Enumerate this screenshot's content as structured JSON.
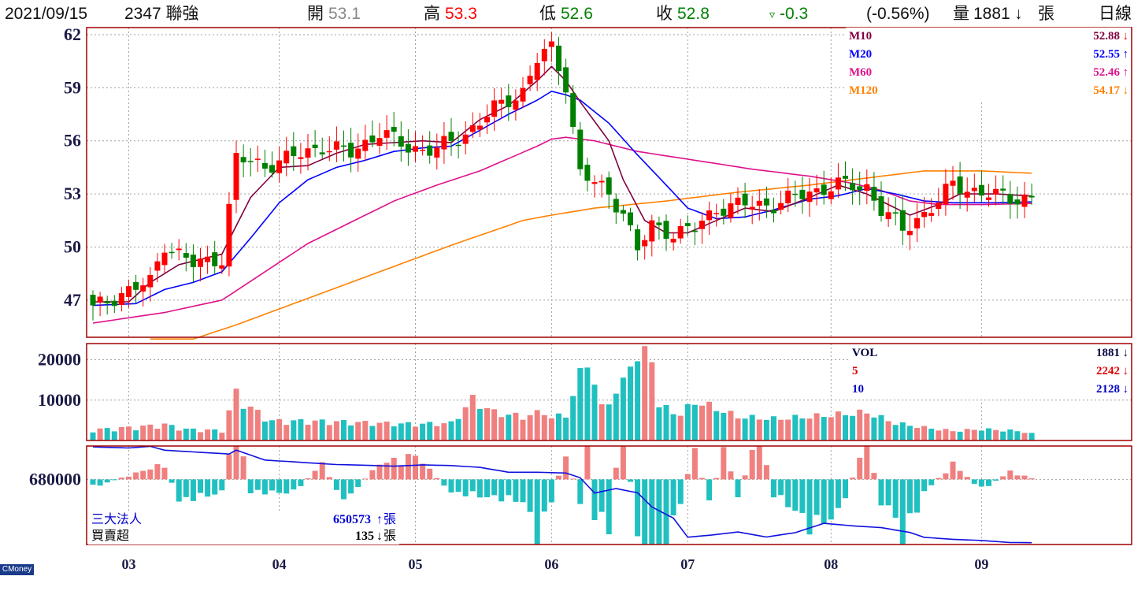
{
  "header": {
    "date": "2021/09/15",
    "stock": "2347 聯強",
    "open_label": "開",
    "open": "53.1",
    "high_label": "高",
    "high": "53.3",
    "low_label": "低",
    "low": "52.6",
    "close_label": "收",
    "close": "52.8",
    "change_symbol": "▿",
    "change": "-0.3",
    "change_pct": "(-0.56%)",
    "volume_label": "量",
    "volume": "1881",
    "volume_arrow": "↓",
    "volume_unit": "張",
    "period": "日線"
  },
  "colors": {
    "up": "#ff0000",
    "down": "#008000",
    "ma10": "#800040",
    "ma20": "#0000ff",
    "ma60": "#e0118b",
    "ma120": "#ff8000",
    "vol_up": "#f08080",
    "vol_down": "#20c0c0",
    "frame": "#a00000",
    "grid": "#a0a0a0"
  },
  "ma_legend": [
    {
      "name": "M10",
      "value": "52.88",
      "arrow": "↓",
      "color": "#800040"
    },
    {
      "name": "M20",
      "value": "52.55",
      "arrow": "↑",
      "color": "#0000ff"
    },
    {
      "name": "M60",
      "value": "52.46",
      "arrow": "↑",
      "color": "#e0118b"
    },
    {
      "name": "M120",
      "value": "54.17",
      "arrow": "↓",
      "color": "#ff8000"
    }
  ],
  "vol_legend": [
    {
      "name": "VOL",
      "value": "1881",
      "arrow": "↓",
      "color": "#000040"
    },
    {
      "name": "5",
      "value": "2242",
      "arrow": "↓",
      "color": "#e00000"
    },
    {
      "name": "10",
      "value": "2128",
      "arrow": "↓",
      "color": "#0000c0"
    }
  ],
  "inst_legend": [
    {
      "name": "三大法人",
      "value": "650573",
      "arrow": "↑",
      "unit": "張",
      "color": "#0000d0"
    },
    {
      "name": "買賣超",
      "value": "135",
      "arrow": "↓",
      "unit": "張",
      "color": "#000000"
    }
  ],
  "brand": "CMoney",
  "chart_data": {
    "type": "candlestick",
    "x_labels": [
      "03",
      "04",
      "05",
      "06",
      "07",
      "08",
      "09"
    ],
    "x_label_index": [
      5,
      26,
      45,
      64,
      83,
      103,
      124
    ],
    "price_ticks": [
      47,
      50,
      53,
      56,
      59,
      62
    ],
    "price_range": [
      44.9,
      62.4
    ],
    "volume_ticks": [
      10000,
      20000
    ],
    "volume_range": [
      0,
      24000
    ],
    "inst_ticks": [
      680000
    ],
    "inst_range": [
      641000,
      700000
    ],
    "close_anchors": [
      [
        0,
        46.5
      ],
      [
        4,
        47.4
      ],
      [
        8,
        48.0
      ],
      [
        10,
        50.2
      ],
      [
        14,
        49.0
      ],
      [
        18,
        49.4
      ],
      [
        20,
        55.0
      ],
      [
        24,
        54.6
      ],
      [
        28,
        55.1
      ],
      [
        32,
        55.7
      ],
      [
        36,
        55.3
      ],
      [
        40,
        56.5
      ],
      [
        44,
        55.6
      ],
      [
        48,
        55.5
      ],
      [
        52,
        56.4
      ],
      [
        56,
        57.8
      ],
      [
        60,
        58.8
      ],
      [
        62,
        60.6
      ],
      [
        64,
        61.2
      ],
      [
        66,
        59.2
      ],
      [
        68,
        54.2
      ],
      [
        72,
        53.0
      ],
      [
        74,
        52.0
      ],
      [
        76,
        49.8
      ],
      [
        78,
        51.2
      ],
      [
        81,
        50.8
      ],
      [
        84,
        51.0
      ],
      [
        87,
        52.2
      ],
      [
        91,
        52.4
      ],
      [
        95,
        52.4
      ],
      [
        100,
        53.1
      ],
      [
        104,
        53.5
      ],
      [
        108,
        53.4
      ],
      [
        110,
        52.1
      ],
      [
        113,
        51.0
      ],
      [
        118,
        52.5
      ],
      [
        120,
        53.6
      ],
      [
        124,
        53.0
      ],
      [
        128,
        52.8
      ],
      [
        131,
        52.8
      ]
    ],
    "vol_anchors": [
      [
        0,
        2500
      ],
      [
        6,
        3100
      ],
      [
        10,
        3700
      ],
      [
        13,
        2600
      ],
      [
        18,
        2300
      ],
      [
        20,
        11000
      ],
      [
        22,
        7500
      ],
      [
        25,
        4500
      ],
      [
        30,
        4500
      ],
      [
        35,
        4300
      ],
      [
        40,
        4000
      ],
      [
        45,
        3800
      ],
      [
        50,
        4000
      ],
      [
        53,
        9500
      ],
      [
        56,
        6500
      ],
      [
        60,
        5500
      ],
      [
        63,
        6700
      ],
      [
        64,
        5200
      ],
      [
        66,
        6000
      ],
      [
        68,
        15000
      ],
      [
        69,
        19000
      ],
      [
        71,
        7500
      ],
      [
        74,
        13000
      ],
      [
        75,
        19000
      ],
      [
        76,
        19000
      ],
      [
        78,
        20000
      ],
      [
        79,
        8000
      ],
      [
        82,
        6000
      ],
      [
        84,
        9000
      ],
      [
        86,
        8000
      ],
      [
        90,
        5500
      ],
      [
        95,
        5000
      ],
      [
        100,
        5500
      ],
      [
        104,
        6000
      ],
      [
        108,
        6500
      ],
      [
        112,
        4000
      ],
      [
        116,
        3000
      ],
      [
        120,
        2200
      ],
      [
        124,
        2600
      ],
      [
        128,
        2300
      ],
      [
        131,
        1881
      ]
    ],
    "inst_anchors": [
      [
        0,
        699500
      ],
      [
        5,
        698800
      ],
      [
        8,
        699800
      ],
      [
        10,
        697500
      ],
      [
        15,
        696200
      ],
      [
        19,
        695200
      ],
      [
        20,
        697500
      ],
      [
        24,
        691600
      ],
      [
        28,
        690500
      ],
      [
        31,
        689700
      ],
      [
        34,
        688900
      ],
      [
        38,
        688500
      ],
      [
        42,
        687900
      ],
      [
        46,
        688700
      ],
      [
        50,
        688300
      ],
      [
        54,
        687200
      ],
      [
        58,
        684300
      ],
      [
        62,
        684300
      ],
      [
        66,
        683800
      ],
      [
        68,
        681000
      ],
      [
        70,
        671800
      ],
      [
        73,
        674500
      ],
      [
        76,
        672000
      ],
      [
        78,
        663500
      ],
      [
        81,
        656800
      ],
      [
        83,
        645400
      ],
      [
        86,
        646500
      ],
      [
        90,
        648500
      ],
      [
        94,
        645500
      ],
      [
        98,
        648100
      ],
      [
        102,
        653700
      ],
      [
        106,
        652200
      ],
      [
        110,
        651100
      ],
      [
        114,
        648200
      ],
      [
        116,
        645300
      ],
      [
        120,
        644100
      ],
      [
        124,
        643400
      ],
      [
        128,
        642200
      ],
      [
        131,
        642100
      ]
    ],
    "net_anchors": [
      [
        0,
        -900
      ],
      [
        10,
        1800
      ],
      [
        12,
        -2500
      ],
      [
        18,
        -1500
      ],
      [
        20,
        6500
      ],
      [
        22,
        -1500
      ],
      [
        28,
        -1500
      ],
      [
        32,
        1800
      ],
      [
        35,
        -2500
      ],
      [
        40,
        1800
      ],
      [
        45,
        2800
      ],
      [
        50,
        -1500
      ],
      [
        60,
        -2500
      ],
      [
        62,
        -6500
      ],
      [
        64,
        -2500
      ],
      [
        66,
        3300
      ],
      [
        68,
        -3300
      ],
      [
        69,
        4500
      ],
      [
        70,
        -4300
      ],
      [
        72,
        -5500
      ],
      [
        74,
        8500
      ],
      [
        76,
        -9000
      ],
      [
        78,
        -16000
      ],
      [
        79,
        -13000
      ],
      [
        82,
        -2500
      ],
      [
        84,
        3800
      ],
      [
        86,
        -3500
      ],
      [
        88,
        3800
      ],
      [
        90,
        -1800
      ],
      [
        93,
        5500
      ],
      [
        95,
        -1800
      ],
      [
        98,
        -3500
      ],
      [
        100,
        -5500
      ],
      [
        104,
        -4000
      ],
      [
        108,
        4500
      ],
      [
        110,
        -2600
      ],
      [
        112,
        -4300
      ],
      [
        113,
        -7000
      ],
      [
        116,
        -1500
      ],
      [
        120,
        1800
      ],
      [
        124,
        -1200
      ],
      [
        128,
        900
      ],
      [
        131,
        135
      ]
    ],
    "ma10_anchors": [
      [
        0,
        46.9
      ],
      [
        5,
        46.9
      ],
      [
        8,
        48.0
      ],
      [
        12,
        49.0
      ],
      [
        18,
        49.6
      ],
      [
        22,
        52.8
      ],
      [
        26,
        54.5
      ],
      [
        30,
        54.6
      ],
      [
        34,
        55.3
      ],
      [
        38,
        55.8
      ],
      [
        42,
        55.9
      ],
      [
        46,
        56.0
      ],
      [
        50,
        55.9
      ],
      [
        54,
        57.2
      ],
      [
        58,
        58.0
      ],
      [
        62,
        59.4
      ],
      [
        64,
        60.2
      ],
      [
        66,
        59.4
      ],
      [
        68,
        58.2
      ],
      [
        72,
        56.0
      ],
      [
        74,
        53.8
      ],
      [
        77,
        51.5
      ],
      [
        80,
        50.8
      ],
      [
        83,
        50.8
      ],
      [
        87,
        51.5
      ],
      [
        91,
        52.2
      ],
      [
        95,
        52.0
      ],
      [
        100,
        52.8
      ],
      [
        104,
        53.5
      ],
      [
        108,
        53.0
      ],
      [
        110,
        52.6
      ],
      [
        114,
        51.8
      ],
      [
        118,
        52.4
      ],
      [
        121,
        53.0
      ],
      [
        126,
        53.0
      ],
      [
        131,
        52.88
      ]
    ],
    "ma20_anchors": [
      [
        0,
        46.7
      ],
      [
        6,
        46.8
      ],
      [
        10,
        47.6
      ],
      [
        14,
        48.0
      ],
      [
        18,
        48.6
      ],
      [
        22,
        50.5
      ],
      [
        26,
        52.5
      ],
      [
        30,
        53.8
      ],
      [
        34,
        54.5
      ],
      [
        38,
        54.9
      ],
      [
        42,
        55.4
      ],
      [
        46,
        55.6
      ],
      [
        50,
        55.7
      ],
      [
        54,
        56.6
      ],
      [
        58,
        57.5
      ],
      [
        62,
        58.3
      ],
      [
        64,
        58.8
      ],
      [
        66,
        58.6
      ],
      [
        68,
        58.3
      ],
      [
        72,
        57.0
      ],
      [
        76,
        55.2
      ],
      [
        80,
        53.5
      ],
      [
        83,
        52.2
      ],
      [
        87,
        51.6
      ],
      [
        91,
        51.7
      ],
      [
        95,
        52.1
      ],
      [
        100,
        52.7
      ],
      [
        104,
        52.9
      ],
      [
        108,
        53.3
      ],
      [
        112,
        53.0
      ],
      [
        116,
        52.6
      ],
      [
        120,
        52.5
      ],
      [
        126,
        52.5
      ],
      [
        131,
        52.55
      ]
    ],
    "ma60_anchors": [
      [
        0,
        45.7
      ],
      [
        10,
        46.3
      ],
      [
        18,
        47.0
      ],
      [
        24,
        48.6
      ],
      [
        30,
        50.2
      ],
      [
        36,
        51.4
      ],
      [
        42,
        52.6
      ],
      [
        48,
        53.5
      ],
      [
        54,
        54.3
      ],
      [
        58,
        55.0
      ],
      [
        62,
        55.7
      ],
      [
        64,
        56.1
      ],
      [
        66,
        56.2
      ],
      [
        70,
        56.0
      ],
      [
        76,
        55.4
      ],
      [
        84,
        54.9
      ],
      [
        92,
        54.4
      ],
      [
        100,
        54.0
      ],
      [
        106,
        53.6
      ],
      [
        110,
        53.2
      ],
      [
        114,
        52.6
      ],
      [
        118,
        52.4
      ],
      [
        124,
        52.4
      ],
      [
        131,
        52.46
      ]
    ],
    "ma120_anchors": [
      [
        8,
        44.8
      ],
      [
        14,
        44.8
      ],
      [
        20,
        45.6
      ],
      [
        30,
        47.1
      ],
      [
        40,
        48.6
      ],
      [
        50,
        50.1
      ],
      [
        60,
        51.5
      ],
      [
        64,
        51.8
      ],
      [
        70,
        52.2
      ],
      [
        80,
        52.6
      ],
      [
        90,
        53.1
      ],
      [
        100,
        53.5
      ],
      [
        110,
        54.0
      ],
      [
        116,
        54.3
      ],
      [
        124,
        54.3
      ],
      [
        131,
        54.17
      ]
    ]
  }
}
